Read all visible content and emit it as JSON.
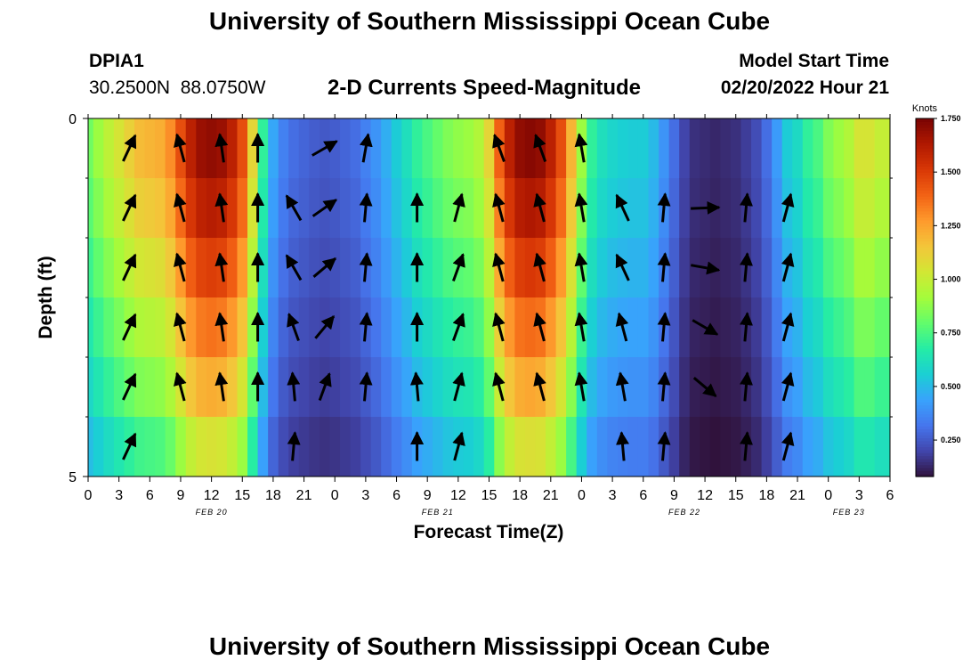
{
  "header": {
    "title": "University of Southern Mississippi Ocean Cube",
    "station_id": "DPIA1",
    "station_coords": "30.2500N  88.0750W",
    "chart_title": "2-D Currents Speed-Magnitude",
    "model_start_label": "Model Start Time",
    "model_start_value": "02/20/2022 Hour 21"
  },
  "footer": {
    "title": "University of Southern Mississippi Ocean Cube"
  },
  "chart_data": {
    "type": "heatmap",
    "title": "2-D Currents Speed-Magnitude",
    "xlabel": "Forecast Time(Z)",
    "ylabel": "Depth (ft)",
    "x_unit": "hours since FEB 20 00Z",
    "xlim": [
      0,
      78
    ],
    "ylim": [
      0,
      5
    ],
    "x_ticks": [
      0,
      3,
      6,
      9,
      12,
      15,
      18,
      21,
      24,
      27,
      30,
      33,
      36,
      39,
      42,
      45,
      48,
      51,
      54,
      57,
      60,
      63,
      66,
      69,
      72,
      75,
      78
    ],
    "x_tick_labels": [
      "0",
      "3",
      "6",
      "9",
      "12",
      "15",
      "18",
      "21",
      "0",
      "3",
      "6",
      "9",
      "12",
      "15",
      "18",
      "21",
      "0",
      "3",
      "6",
      "9",
      "12",
      "15",
      "18",
      "21",
      "0",
      "3",
      "6"
    ],
    "date_labels": [
      {
        "text": "FEB 20",
        "x": 12
      },
      {
        "text": "FEB 21",
        "x": 34
      },
      {
        "text": "FEB 22",
        "x": 58
      },
      {
        "text": "FEB 23",
        "x": 74
      }
    ],
    "y_tick_values": [
      0,
      5
    ],
    "y_tick_labels": [
      "0",
      "5"
    ],
    "colorbar": {
      "label": "Knots",
      "min": 0.08,
      "max": 1.75,
      "ticks": [
        0.25,
        0.5,
        0.75,
        1.0,
        1.25,
        1.5,
        1.75
      ],
      "tick_labels": [
        "0.250",
        "0.500",
        "0.750",
        "1.000",
        "1.250",
        "1.500",
        "1.750"
      ],
      "colors": [
        "#30123b",
        "#4145ab",
        "#4675ed",
        "#39a2fc",
        "#1bcfd4",
        "#24eca6",
        "#61fc6c",
        "#a4fc3b",
        "#d1e834",
        "#f3c63a",
        "#fe9b2d",
        "#f36315",
        "#d93806",
        "#b11901",
        "#7a0403"
      ]
    },
    "speed_profile": {
      "times": [
        0,
        1,
        2,
        3,
        4,
        5,
        6,
        7,
        8,
        9,
        10,
        11,
        12,
        13,
        14,
        15,
        16,
        17,
        18,
        19,
        20,
        21,
        22,
        23,
        24,
        25,
        26,
        27,
        28,
        29,
        30,
        31,
        32,
        33,
        34,
        35,
        36,
        37,
        38,
        39,
        40,
        41,
        42,
        43,
        44,
        45,
        46,
        47,
        48,
        49,
        50,
        51,
        52,
        53,
        54,
        55,
        56,
        57,
        58,
        59,
        60,
        61,
        62,
        63,
        64,
        65,
        66,
        67,
        68,
        69,
        70,
        71,
        72,
        73,
        74,
        75,
        76,
        77,
        78
      ],
      "speeds": [
        0.82,
        0.9,
        0.98,
        1.05,
        1.12,
        1.18,
        1.2,
        1.22,
        1.3,
        1.45,
        1.6,
        1.68,
        1.7,
        1.68,
        1.6,
        1.45,
        1.1,
        0.7,
        0.45,
        0.35,
        0.3,
        0.28,
        0.26,
        0.25,
        0.26,
        0.28,
        0.3,
        0.35,
        0.4,
        0.47,
        0.55,
        0.62,
        0.7,
        0.75,
        0.8,
        0.85,
        0.88,
        0.9,
        0.95,
        1.1,
        1.4,
        1.6,
        1.7,
        1.72,
        1.7,
        1.6,
        1.45,
        1.2,
        0.9,
        0.7,
        0.62,
        0.58,
        0.56,
        0.55,
        0.55,
        0.5,
        0.4,
        0.3,
        0.2,
        0.15,
        0.14,
        0.13,
        0.14,
        0.15,
        0.18,
        0.22,
        0.3,
        0.42,
        0.55,
        0.6,
        0.7,
        0.75,
        0.85,
        0.9,
        0.95,
        1.05,
        1.05,
        1.0,
        1.0
      ],
      "depth_factor": [
        1.0,
        0.95,
        0.88,
        0.8,
        0.72,
        0.62
      ]
    },
    "vectors": [
      {
        "t": 4,
        "dir": [
          25,
          25,
          25,
          25,
          25,
          25
        ]
      },
      {
        "t": 9,
        "dir": [
          -15,
          -15,
          -15,
          -15,
          -15,
          null
        ]
      },
      {
        "t": 13,
        "dir": [
          -8,
          -8,
          -8,
          -8,
          -8,
          null
        ]
      },
      {
        "t": 16.5,
        "dir": [
          0,
          0,
          0,
          0,
          0,
          null
        ]
      },
      {
        "t": 20,
        "dir": [
          null,
          -30,
          -30,
          -20,
          -5,
          5
        ]
      },
      {
        "t": 23,
        "dir": [
          60,
          55,
          50,
          40,
          20,
          null
        ]
      },
      {
        "t": 27,
        "dir": [
          10,
          5,
          5,
          5,
          5,
          null
        ]
      },
      {
        "t": 32,
        "dir": [
          null,
          0,
          0,
          0,
          -5,
          0
        ]
      },
      {
        "t": 36,
        "dir": [
          null,
          15,
          20,
          20,
          15,
          15
        ]
      },
      {
        "t": 40,
        "dir": [
          -20,
          -15,
          -15,
          -15,
          -15,
          null
        ]
      },
      {
        "t": 44,
        "dir": [
          -20,
          -15,
          -15,
          -15,
          -15,
          null
        ]
      },
      {
        "t": 48,
        "dir": [
          -10,
          -10,
          -10,
          -10,
          -10,
          null
        ]
      },
      {
        "t": 52,
        "dir": [
          null,
          -25,
          -25,
          -15,
          -10,
          -5
        ]
      },
      {
        "t": 56,
        "dir": [
          null,
          5,
          5,
          5,
          5,
          5
        ]
      },
      {
        "t": 60,
        "dir": [
          null,
          88,
          100,
          120,
          130,
          null
        ]
      },
      {
        "t": 64,
        "dir": [
          null,
          5,
          5,
          5,
          5,
          5
        ]
      },
      {
        "t": 68,
        "dir": [
          null,
          15,
          15,
          15,
          15,
          15
        ]
      }
    ]
  }
}
